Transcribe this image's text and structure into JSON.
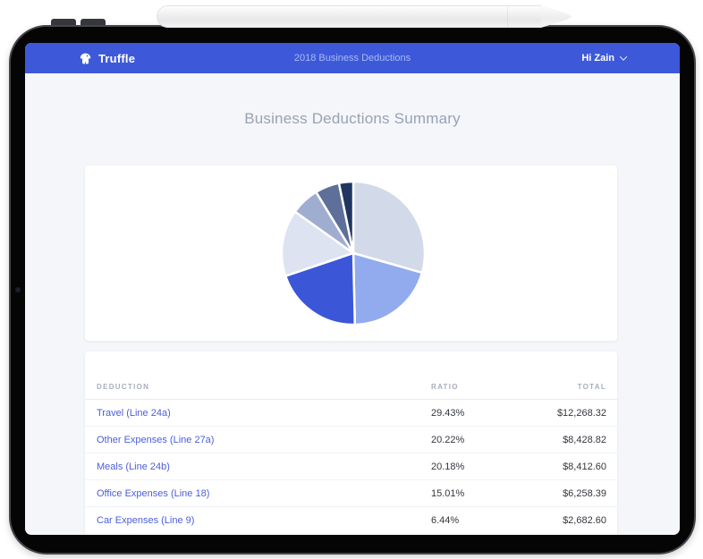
{
  "navbar": {
    "brand": "Truffle",
    "title": "2018 Business Deductions",
    "user_menu": "Hi Zain"
  },
  "page": {
    "heading": "Business Deductions Summary"
  },
  "table": {
    "columns": [
      "DEDUCTION",
      "RATIO",
      "TOTAL"
    ],
    "rows": [
      {
        "deduction": "Travel (Line 24a)",
        "ratio": "29.43%",
        "total": "$12,268.32"
      },
      {
        "deduction": "Other Expenses (Line 27a)",
        "ratio": "20.22%",
        "total": "$8,428.82"
      },
      {
        "deduction": "Meals (Line 24b)",
        "ratio": "20.18%",
        "total": "$8,412.60"
      },
      {
        "deduction": "Office Expenses (Line 18)",
        "ratio": "15.01%",
        "total": "$6,258.39"
      },
      {
        "deduction": "Car Expenses (Line 9)",
        "ratio": "6.44%",
        "total": "$2,682.60"
      }
    ]
  },
  "chart_data": {
    "type": "pie",
    "title": "Business Deductions Summary",
    "start_angle_deg": 0,
    "direction": "clockwise",
    "legend": "none",
    "slices": [
      {
        "label": "Travel (Line 24a)",
        "value": 29.43,
        "color": "#d2d9e8"
      },
      {
        "label": "Other Expenses (Line 27a)",
        "value": 20.22,
        "color": "#92abee"
      },
      {
        "label": "Meals (Line 24b)",
        "value": 20.18,
        "color": "#3b57d8"
      },
      {
        "label": "Office Expenses (Line 18)",
        "value": 15.01,
        "color": "#dde3f0"
      },
      {
        "label": "Car Expenses (Line 9)",
        "value": 6.44,
        "color": "#9fadd1"
      },
      {
        "label": "unlabeled-slice-1",
        "value": 5.5,
        "color": "#5e7099"
      },
      {
        "label": "unlabeled-slice-2",
        "value": 3.22,
        "color": "#21365f"
      }
    ]
  },
  "colors": {
    "navbar_bg": "#3d59da",
    "navbar_center_text": "#a9b8f0",
    "screen_bg": "#f4f6f9",
    "heading_text": "#99a2b6",
    "link_blue": "#4c5ed8",
    "value_text": "#33373d",
    "header_text": "#a8aebc"
  }
}
